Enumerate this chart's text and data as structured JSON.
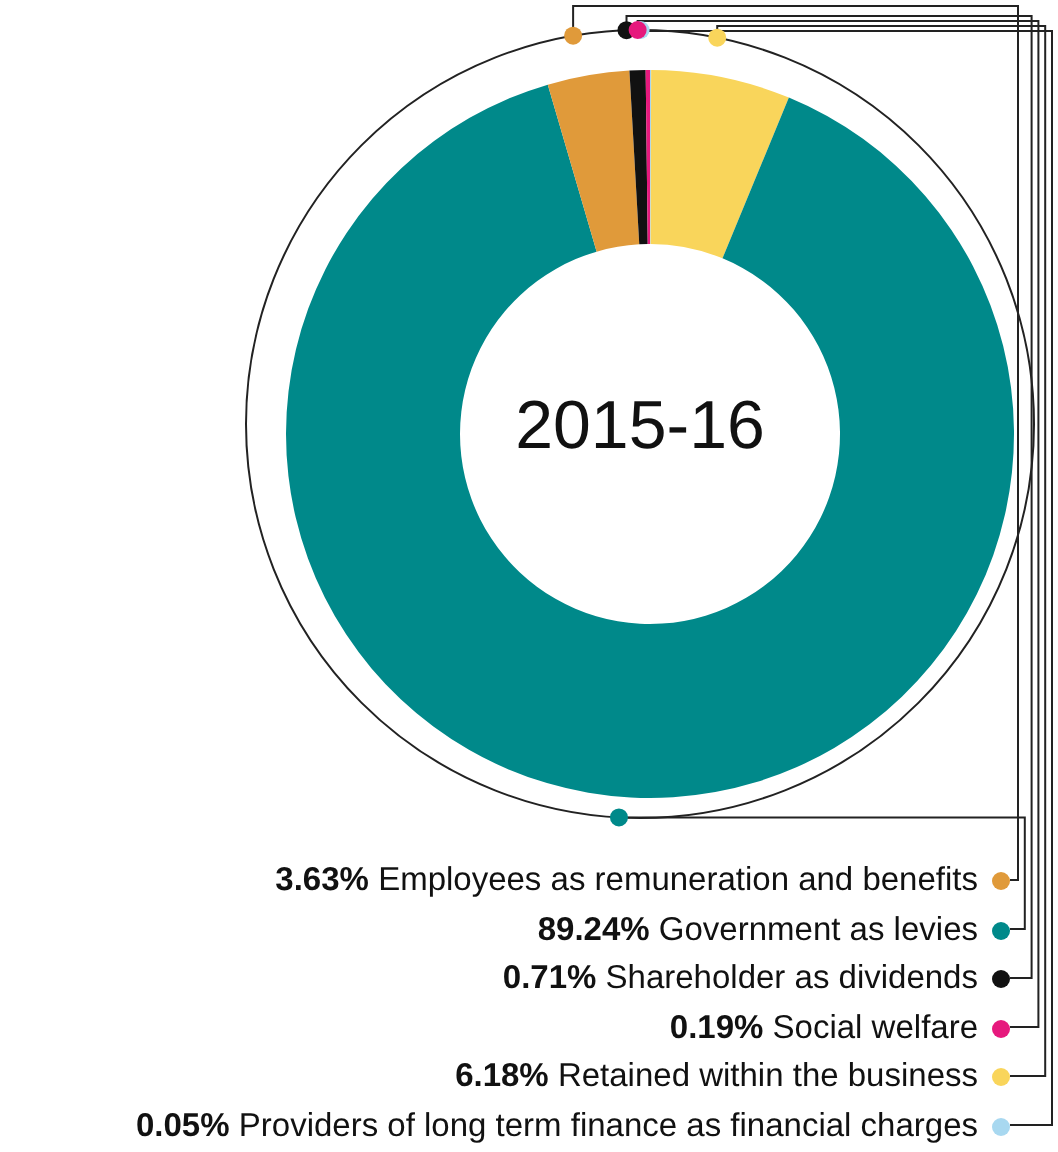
{
  "chart_data": {
    "type": "donut",
    "title": "2015-16",
    "categories": [
      "Providers of long term finance as financial charges",
      "Retained within the business",
      "Government as levies",
      "Employees as remuneration and benefits",
      "Shareholder as dividends",
      "Social welfare"
    ],
    "values": [
      0.05,
      6.18,
      89.24,
      3.63,
      0.71,
      0.19
    ],
    "value_labels": [
      "0.05%",
      "6.18%",
      "89.24%",
      "3.63%",
      "0.71%",
      "0.19%"
    ],
    "colors": [
      "#a8d8f0",
      "#f9d55b",
      "#00898a",
      "#e09a3a",
      "#111111",
      "#e6197d"
    ],
    "legend": "bottom"
  }
}
